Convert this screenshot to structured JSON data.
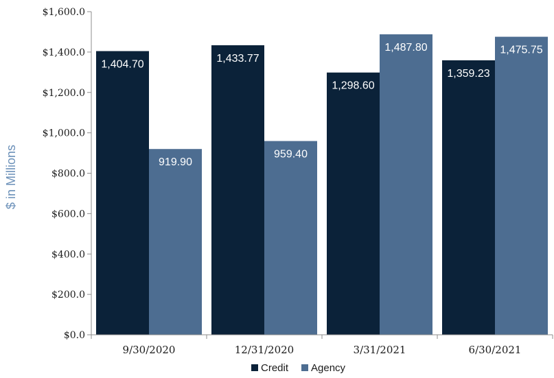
{
  "chart_data": {
    "type": "bar",
    "categories": [
      "9/30/2020",
      "12/31/2020",
      "3/31/2021",
      "6/30/2021"
    ],
    "series": [
      {
        "name": "Credit",
        "color": "#0b2239",
        "values": [
          1404.7,
          1433.77,
          1298.6,
          1359.23
        ],
        "labels": [
          "1,404.70",
          "1,433.77",
          "1,298.60",
          "1,359.23"
        ]
      },
      {
        "name": "Agency",
        "color": "#4d6d91",
        "values": [
          919.9,
          959.4,
          1487.8,
          1475.75
        ],
        "labels": [
          "919.90",
          "959.40",
          "1,487.80",
          "1,475.75"
        ]
      }
    ],
    "title": "",
    "xlabel": "",
    "ylabel": "$ in Millions",
    "ylabel_color": "#6a8fb8",
    "ylim": [
      0,
      1600
    ],
    "yticks": [
      0,
      200,
      400,
      600,
      800,
      1000,
      1200,
      1400,
      1600
    ],
    "ytick_labels": [
      "$0.0",
      "$200.0",
      "$400.0",
      "$600.0",
      "$800.0",
      "$1,000.0",
      "$1,200.0",
      "$1,400.0",
      "$1,600.0"
    ],
    "grid": false,
    "legend_position": "bottom-center"
  }
}
